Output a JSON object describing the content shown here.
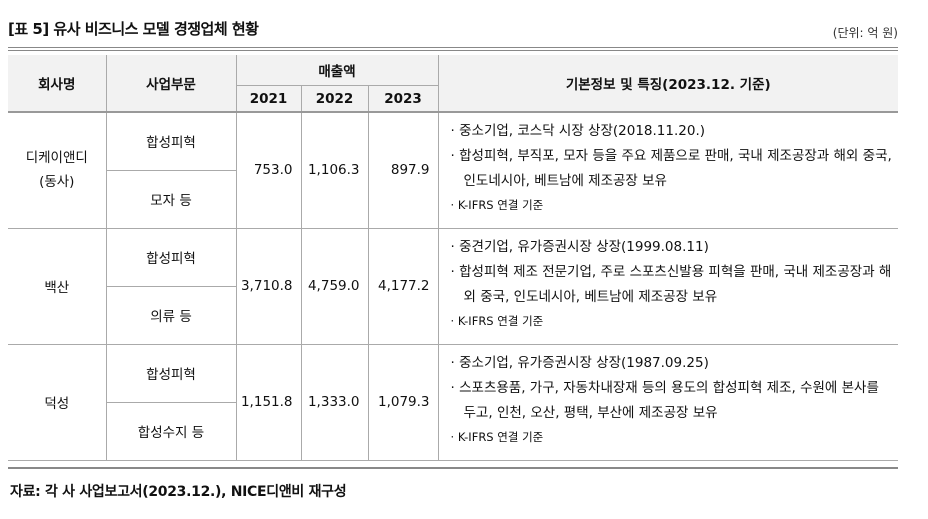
{
  "title": "[표 5] 유사 비즈니스 모델 경쟁업체 현황",
  "unit": "(단위: 억 원)",
  "headers": {
    "company": "회사명",
    "division": "사업부문",
    "sales": "매출액",
    "years": [
      "2021",
      "2022",
      "2023"
    ],
    "info": "기본정보 및 특징(2023.12. 기준)"
  },
  "rows": [
    {
      "name": "디케이앤디\n(동사)",
      "divisions": [
        "합성피혁",
        "모자 등"
      ],
      "sales": [
        "753.0",
        "1,106.3",
        "897.9"
      ],
      "info": [
        "· 중소기업, 코스닥 시장 상장(2018.11.20.)",
        "· 합성피혁, 부직포, 모자 등을 주요 제품으로 판매, 국내 제조공장과 해외 중국, 인도네시아, 베트남에 제조공장 보유"
      ],
      "note": "· K-IFRS 연결 기준"
    },
    {
      "name": "백산",
      "divisions": [
        "합성피혁",
        "의류 등"
      ],
      "sales": [
        "3,710.8",
        "4,759.0",
        "4,177.2"
      ],
      "info": [
        "· 중견기업, 유가증권시장 상장(1999.08.11)",
        "· 합성피혁 제조 전문기업, 주로 스포츠신발용 피혁을 판매, 국내 제조공장과 해외 중국, 인도네시아, 베트남에 제조공장 보유"
      ],
      "note": "· K-IFRS 연결 기준"
    },
    {
      "name": "덕성",
      "divisions": [
        "합성피혁",
        "합성수지 등"
      ],
      "sales": [
        "1,151.8",
        "1,333.0",
        "1,079.3"
      ],
      "info": [
        "· 중소기업, 유가증권시장 상장(1987.09.25)",
        "· 스포츠용품, 가구, 자동차내장재 등의 용도의 합성피혁 제조, 수원에 본사를 두고, 인천, 오산, 평택, 부산에 제조공장 보유"
      ],
      "note": "· K-IFRS 연결 기준"
    }
  ],
  "source": "자료: 각 사 사업보고서(2023.12.), NICE디앤비 재구성"
}
